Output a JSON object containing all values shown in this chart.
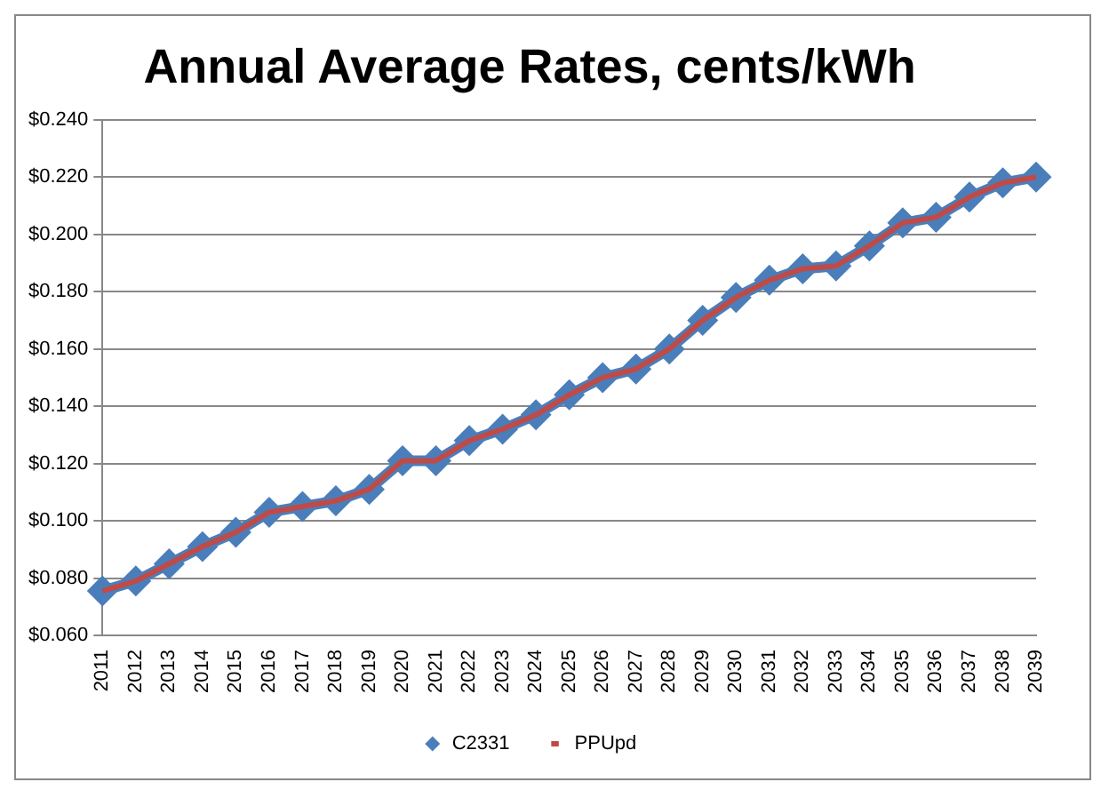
{
  "chart_data": {
    "type": "line",
    "title": "Annual Average Rates, cents/kWh",
    "categories": [
      "2011",
      "2012",
      "2013",
      "2014",
      "2015",
      "2016",
      "2017",
      "2018",
      "2019",
      "2020",
      "2021",
      "2022",
      "2023",
      "2024",
      "2025",
      "2026",
      "2027",
      "2028",
      "2029",
      "2030",
      "2031",
      "2032",
      "2033",
      "2034",
      "2035",
      "2036",
      "2037",
      "2038",
      "2039"
    ],
    "series": [
      {
        "name": "C2331",
        "color": "#4a7ebb",
        "marker": "diamond",
        "values": [
          0.0755,
          0.079,
          0.085,
          0.091,
          0.096,
          0.103,
          0.105,
          0.107,
          0.111,
          0.121,
          0.121,
          0.128,
          0.132,
          0.137,
          0.144,
          0.15,
          0.153,
          0.16,
          0.17,
          0.178,
          0.184,
          0.188,
          0.189,
          0.196,
          0.204,
          0.206,
          0.213,
          0.218,
          0.22
        ]
      },
      {
        "name": "PPUpd",
        "color": "#be4b48",
        "marker": "none",
        "values": [
          0.0755,
          0.079,
          0.085,
          0.091,
          0.096,
          0.103,
          0.105,
          0.107,
          0.111,
          0.121,
          0.121,
          0.128,
          0.132,
          0.137,
          0.144,
          0.15,
          0.153,
          0.16,
          0.17,
          0.178,
          0.184,
          0.188,
          0.189,
          0.196,
          0.204,
          0.206,
          0.213,
          0.218,
          0.22
        ]
      }
    ],
    "ylim": [
      0.06,
      0.24
    ],
    "yticks": [
      {
        "value": 0.06,
        "label": "$0.060"
      },
      {
        "value": 0.08,
        "label": "$0.080"
      },
      {
        "value": 0.1,
        "label": "$0.100"
      },
      {
        "value": 0.12,
        "label": "$0.120"
      },
      {
        "value": 0.14,
        "label": "$0.140"
      },
      {
        "value": 0.16,
        "label": "$0.160"
      },
      {
        "value": 0.18,
        "label": "$0.180"
      },
      {
        "value": 0.2,
        "label": "$0.200"
      },
      {
        "value": 0.22,
        "label": "$0.220"
      },
      {
        "value": 0.24,
        "label": "$0.240"
      }
    ],
    "grid": "y",
    "legend": "bottom",
    "line_style": "solid"
  }
}
